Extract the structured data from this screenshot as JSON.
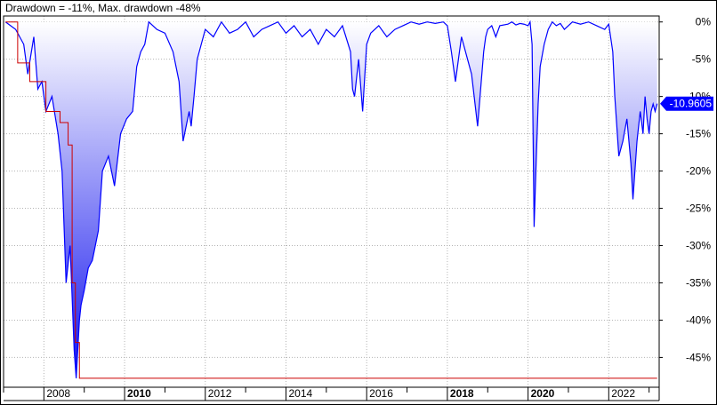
{
  "title": "Drawdown = -11%, Max. drawdown -48%",
  "colors": {
    "series": "#0000ff",
    "max_drawdown": "#cc0000",
    "grid": "#b4b4b4",
    "frame": "#000000",
    "label_bg": "#0000ff",
    "label_text": "#ffffff"
  },
  "chart_data": {
    "type": "area",
    "title": "Drawdown = -11%, Max. drawdown -48%",
    "xlabel": "",
    "ylabel": "",
    "xlim": [
      2007.0,
      2023.25
    ],
    "ylim": [
      -49.0,
      0.8
    ],
    "y_ticks": [
      0,
      -5,
      -10,
      -15,
      -20,
      -25,
      -30,
      -35,
      -40,
      -45
    ],
    "y_tick_labels": [
      "0%",
      "-5%",
      "-10%",
      "-15%",
      "-20%",
      "-25%",
      "-30%",
      "-35%",
      "-40%",
      "-45%"
    ],
    "x_ticks": [
      2008,
      2010,
      2012,
      2014,
      2016,
      2018,
      2020,
      2022
    ],
    "x_tick_labels": [
      "2008",
      "2010",
      "2012",
      "2014",
      "2016",
      "2018",
      "2020",
      "2022"
    ],
    "x_tick_bold": [
      false,
      true,
      false,
      false,
      false,
      true,
      true,
      false
    ],
    "grid": true,
    "current_value_label": "-10.9605",
    "series": [
      {
        "name": "Drawdown",
        "x": [
          2007.05,
          2007.3,
          2007.5,
          2007.6,
          2007.75,
          2007.85,
          2007.95,
          2008.05,
          2008.2,
          2008.35,
          2008.45,
          2008.55,
          2008.65,
          2008.75,
          2008.8,
          2008.88,
          2008.92,
          2009.0,
          2009.1,
          2009.2,
          2009.35,
          2009.45,
          2009.6,
          2009.75,
          2009.9,
          2010.05,
          2010.2,
          2010.3,
          2010.4,
          2010.5,
          2010.6,
          2010.8,
          2011.0,
          2011.2,
          2011.35,
          2011.45,
          2011.6,
          2011.65,
          2011.72,
          2011.8,
          2011.9,
          2012.0,
          2012.2,
          2012.4,
          2012.6,
          2012.8,
          2013.0,
          2013.2,
          2013.4,
          2013.6,
          2013.8,
          2014.0,
          2014.2,
          2014.4,
          2014.6,
          2014.8,
          2015.0,
          2015.2,
          2015.4,
          2015.6,
          2015.65,
          2015.7,
          2015.8,
          2015.9,
          2016.0,
          2016.1,
          2016.3,
          2016.5,
          2016.7,
          2016.9,
          2017.1,
          2017.3,
          2017.5,
          2017.7,
          2017.9,
          2018.0,
          2018.1,
          2018.2,
          2018.35,
          2018.5,
          2018.6,
          2018.75,
          2018.9,
          2018.95,
          2019.0,
          2019.1,
          2019.2,
          2019.3,
          2019.5,
          2019.6,
          2019.7,
          2019.8,
          2019.9,
          2020.0,
          2020.05,
          2020.1,
          2020.15,
          2020.2,
          2020.25,
          2020.3,
          2020.4,
          2020.5,
          2020.6,
          2020.7,
          2020.8,
          2020.9,
          2021.0,
          2021.1,
          2021.3,
          2021.5,
          2021.7,
          2021.9,
          2022.0,
          2022.1,
          2022.15,
          2022.25,
          2022.35,
          2022.45,
          2022.55,
          2022.6,
          2022.7,
          2022.78,
          2022.85,
          2022.9,
          2022.95,
          2023.0,
          2023.05,
          2023.1,
          2023.15,
          2023.2
        ],
        "values": [
          0,
          -1,
          -3,
          -7,
          -2,
          -9,
          -8,
          -12,
          -10,
          -15,
          -20,
          -35,
          -30,
          -44,
          -47.8,
          -40,
          -38,
          -36,
          -33,
          -32,
          -28,
          -20,
          -18,
          -22,
          -15,
          -13,
          -12,
          -6,
          -4,
          -3,
          0,
          -1,
          -1.5,
          -4,
          -8,
          -16,
          -12,
          -14,
          -10,
          -5,
          -3,
          -1,
          -2,
          0,
          -1.5,
          -1,
          0,
          -2,
          -1,
          -0.5,
          0,
          -1.5,
          -0.5,
          -2,
          -1,
          -3,
          -1,
          -2,
          -0.5,
          -4,
          -9,
          -10,
          -5,
          -12,
          -3,
          -1.5,
          -0.5,
          -2,
          -1,
          -0.5,
          0,
          -0.3,
          0,
          -0.2,
          0,
          -0.5,
          -4,
          -8,
          -2,
          -5,
          -7,
          -14,
          -4,
          -2,
          -1,
          -0.5,
          -2,
          -0.5,
          -0.3,
          0,
          -0.4,
          -0.2,
          -0.3,
          -0.5,
          0,
          -3,
          -27.5,
          -19,
          -11,
          -6,
          -3,
          -1,
          0,
          -0.5,
          -0.2,
          -1,
          -0.5,
          0,
          -0.3,
          0,
          -0.5,
          -1,
          -0.3,
          -4,
          -10,
          -18,
          -16,
          -13,
          -19,
          -23.8,
          -16,
          -12,
          -15,
          -10,
          -13,
          -15,
          -12,
          -11,
          -12,
          -10.96
        ]
      },
      {
        "name": "Max drawdown",
        "x": [
          2007.05,
          2007.35,
          2007.35,
          2007.65,
          2007.65,
          2008.05,
          2008.05,
          2008.4,
          2008.4,
          2008.6,
          2008.6,
          2008.7,
          2008.7,
          2008.78,
          2008.78,
          2008.88,
          2008.88,
          2023.2
        ],
        "values": [
          0,
          0,
          -5.5,
          -5.5,
          -8,
          -8,
          -12,
          -12,
          -13.5,
          -13.5,
          -16.5,
          -16.5,
          -35,
          -35,
          -43,
          -43,
          -47.8,
          -47.8
        ]
      }
    ]
  }
}
